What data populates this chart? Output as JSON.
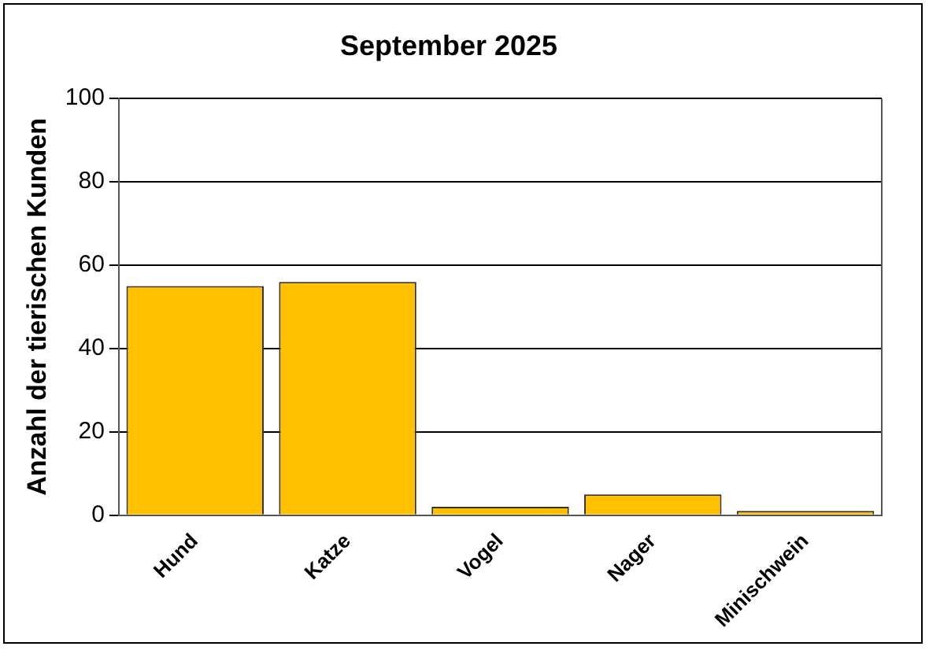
{
  "chart_data": {
    "type": "bar",
    "title": "September 2025",
    "ylabel": "Anzahl der tierischen Kunden",
    "categories": [
      "Hund",
      "Katze",
      "Vogel",
      "Nager",
      "Minischwein"
    ],
    "values": [
      55,
      56,
      2,
      5,
      1
    ],
    "color": "#ffc000",
    "ylim": [
      0,
      100
    ],
    "yticks": [
      0,
      20,
      40,
      60,
      80,
      100
    ],
    "grid": "y"
  }
}
